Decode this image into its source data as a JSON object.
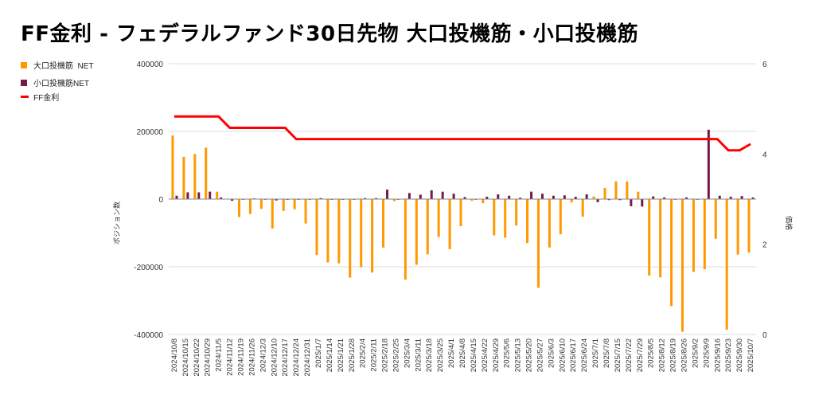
{
  "title": "FF金利 - フェデラルファンド30日先物 大口投機筋・小口投機筋",
  "chart_data": {
    "type": "bar+line",
    "title": "FF金利 - フェデラルファンド30日先物 大口投機筋・小口投機筋",
    "ylabel": "ポジション数",
    "y2label": "価格",
    "ylim": [
      -400000,
      400000
    ],
    "y2lim": [
      0,
      6
    ],
    "yticks": [
      "400000",
      "200000",
      "0",
      "-200000",
      "-400000"
    ],
    "y2ticks": [
      "6",
      "4",
      "2",
      "0"
    ],
    "legend_position": "top-left",
    "colors": {
      "large": "#ff9900",
      "small": "#741b47",
      "ff": "#ff0000"
    },
    "categories": [
      "2024/10/8",
      "2024/10/15",
      "2024/10/22",
      "2024/10/29",
      "2024/11/5",
      "2024/11/12",
      "2024/11/19",
      "2024/11/26",
      "2024/12/3",
      "2024/12/10",
      "2024/12/17",
      "2024/12/24",
      "2024/12/31",
      "2025/1/7",
      "2025/1/14",
      "2025/1/21",
      "2025/1/28",
      "2025/2/4",
      "2025/2/11",
      "2025/2/18",
      "2025/2/25",
      "2025/3/4",
      "2025/3/11",
      "2025/3/18",
      "2025/3/25",
      "2025/4/1",
      "2025/4/8",
      "2025/4/15",
      "2025/4/22",
      "2025/4/29",
      "2025/5/6",
      "2025/5/13",
      "2025/5/20",
      "2025/5/27",
      "2025/6/3",
      "2025/6/10",
      "2025/6/17",
      "2025/6/24",
      "2025/7/1",
      "2025/7/8",
      "2025/7/15",
      "2025/7/22",
      "2025/7/29",
      "2025/8/5",
      "2025/8/12",
      "2025/8/19",
      "2025/8/26",
      "2025/9/2",
      "2025/9/9",
      "2025/9/16",
      "2025/9/23",
      "2025/9/30",
      "2025/10/7"
    ],
    "series": [
      {
        "name": "大口投機筋  NET",
        "type": "bar",
        "axis": "left",
        "values": [
          188000,
          125000,
          133000,
          152000,
          22000,
          1000,
          -53000,
          -44000,
          -29000,
          -87000,
          -35000,
          -30000,
          -72000,
          -165000,
          -187000,
          -190000,
          -232000,
          -201000,
          -217000,
          -143000,
          -6000,
          -238000,
          -194000,
          -163000,
          -112000,
          -148000,
          -80000,
          -5000,
          -12000,
          -107000,
          -114000,
          -78000,
          -130000,
          -262000,
          -143000,
          -104000,
          -10000,
          -52000,
          8000,
          33000,
          52000,
          52000,
          22000,
          -226000,
          -231000,
          -316000,
          -392000,
          -215000,
          -207000,
          -117000,
          -386000,
          -164000,
          -158000
        ]
      },
      {
        "name": "小口投機筋NET",
        "type": "bar",
        "axis": "left",
        "values": [
          10000,
          20000,
          20000,
          22000,
          5000,
          -5000,
          0,
          2000,
          0,
          -4000,
          -2000,
          -2000,
          0,
          3000,
          -2000,
          -2000,
          0,
          3000,
          3000,
          28000,
          0,
          18000,
          13000,
          26000,
          22000,
          16000,
          6000,
          0,
          7000,
          14000,
          10000,
          4000,
          22000,
          16000,
          10000,
          11000,
          7000,
          14000,
          -9000,
          -3000,
          -3000,
          -21000,
          -22000,
          8000,
          5000,
          -1000,
          5000,
          0,
          205000,
          10000,
          7000,
          9000,
          5000
        ]
      },
      {
        "name": "FF金利",
        "type": "line",
        "axis": "right",
        "values": [
          4.83,
          4.83,
          4.83,
          4.83,
          4.83,
          4.58,
          4.58,
          4.58,
          4.58,
          4.58,
          4.58,
          4.33,
          4.33,
          4.33,
          4.33,
          4.33,
          4.33,
          4.33,
          4.33,
          4.33,
          4.33,
          4.33,
          4.33,
          4.33,
          4.33,
          4.33,
          4.33,
          4.33,
          4.33,
          4.33,
          4.33,
          4.33,
          4.33,
          4.33,
          4.33,
          4.33,
          4.33,
          4.33,
          4.33,
          4.33,
          4.33,
          4.33,
          4.33,
          4.33,
          4.33,
          4.33,
          4.33,
          4.33,
          4.33,
          4.33,
          4.08,
          4.08,
          4.22
        ]
      }
    ]
  }
}
